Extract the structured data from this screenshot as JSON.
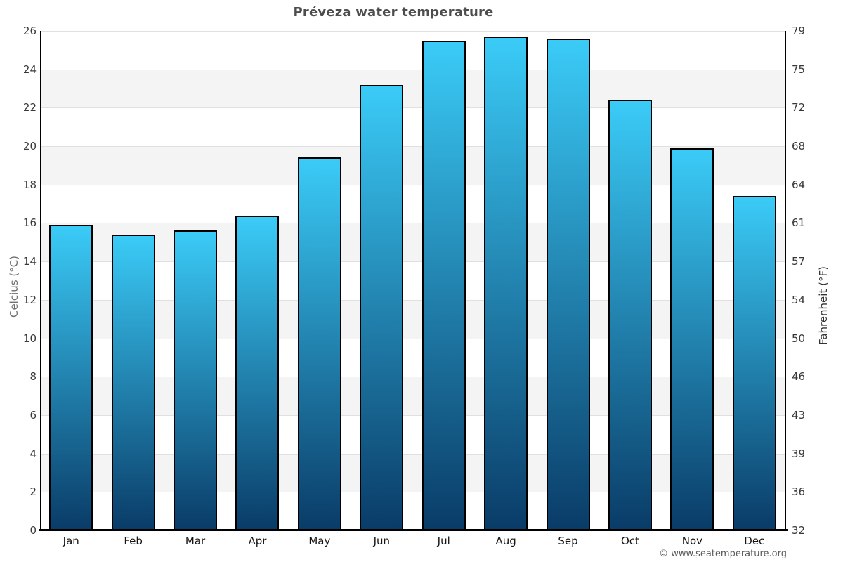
{
  "title": "Préveza water temperature",
  "footer": "© www.seatemperature.org",
  "axes": {
    "left_label": "Celcius (°C)",
    "right_label": "Fahrenheit (°F)",
    "left_ticks": [
      0,
      2,
      4,
      6,
      8,
      10,
      12,
      14,
      16,
      18,
      20,
      22,
      24,
      26
    ],
    "right_ticks": [
      32,
      36,
      39,
      43,
      46,
      50,
      54,
      57,
      61,
      64,
      68,
      72,
      75,
      79
    ]
  },
  "colors": {
    "bar_top": "#3bcbf7",
    "bar_bottom": "#0a3c68",
    "bar_border": "#000000",
    "band_gray": "#f4f4f4",
    "band_white": "#ffffff",
    "gridline": "#e0e0e0",
    "axis_line": "#000000",
    "title_text": "#4d4d4d",
    "tick_text": "#383838",
    "month_text": "#141414",
    "left_axis_label_text": "#6e6e6e",
    "right_axis_label_text": "#333333",
    "footer_text": "#595959"
  },
  "chart_data": {
    "type": "bar",
    "title": "Préveza water temperature",
    "categories": [
      "Jan",
      "Feb",
      "Mar",
      "Apr",
      "May",
      "Jun",
      "Jul",
      "Aug",
      "Sep",
      "Oct",
      "Nov",
      "Dec"
    ],
    "values": [
      15.9,
      15.4,
      15.6,
      16.4,
      19.4,
      23.2,
      25.5,
      25.7,
      25.6,
      22.4,
      19.9,
      17.4
    ],
    "unit": "°C",
    "ylabel_left": "Celcius (°C)",
    "ylabel_right": "Fahrenheit (°F)",
    "ylim": [
      0,
      26
    ],
    "y_ticks_left": [
      0,
      2,
      4,
      6,
      8,
      10,
      12,
      14,
      16,
      18,
      20,
      22,
      24,
      26
    ],
    "y_ticks_right": [
      32,
      36,
      39,
      43,
      46,
      50,
      54,
      57,
      61,
      64,
      68,
      72,
      75,
      79
    ],
    "grid": true,
    "legend": false,
    "band_pattern": "alternating 2°C horizontal bands, gray on 2-4, 6-8, 10-12, 14-16, 18-20, 22-24",
    "bar_style": "vertical gradient light cyan top to dark navy bottom, 2px black border"
  }
}
